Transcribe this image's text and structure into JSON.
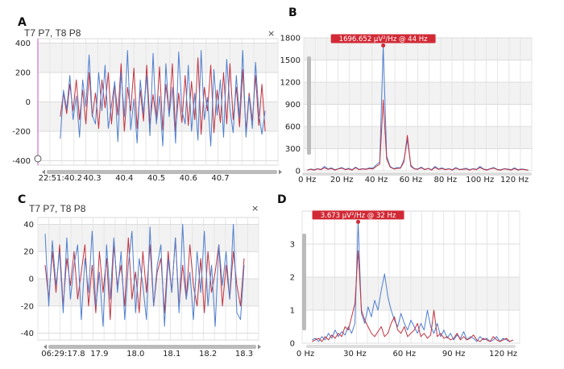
{
  "panels": {
    "a": {
      "letter": "A",
      "title": "T7 P7, T8 P8",
      "close": "×"
    },
    "b": {
      "letter": "B"
    },
    "c": {
      "letter": "C",
      "title": "T7 P7, T8 P8",
      "close": "×"
    },
    "d": {
      "letter": "D"
    }
  },
  "colors": {
    "series_red": "#c2323f",
    "series_blue": "#4f7fcf",
    "scrollbar": "#bbbbbb",
    "marker": "#d12a36",
    "cursor": "#d070d0"
  },
  "chart_data": [
    {
      "id": "A",
      "type": "line",
      "grid": true,
      "ylim": [
        -430,
        430
      ],
      "xlim": [
        40.13,
        40.88
      ],
      "yticks": [
        400,
        200,
        0,
        -200,
        -400
      ],
      "xticks": [
        {
          "v": 40.2,
          "label": "22:51:40.2"
        },
        {
          "v": 40.3,
          "label": "40.3"
        },
        {
          "v": 40.4,
          "label": "40.4"
        },
        {
          "v": 40.5,
          "label": "40.5"
        },
        {
          "v": 40.6,
          "label": "40.6"
        },
        {
          "v": 40.7,
          "label": "40.7"
        }
      ],
      "x": [
        40.2,
        40.21,
        40.22,
        40.23,
        40.24,
        40.25,
        40.26,
        40.27,
        40.28,
        40.29,
        40.3,
        40.31,
        40.32,
        40.33,
        40.34,
        40.35,
        40.36,
        40.37,
        40.38,
        40.39,
        40.4,
        40.41,
        40.42,
        40.43,
        40.44,
        40.45,
        40.46,
        40.47,
        40.48,
        40.49,
        40.5,
        40.51,
        40.52,
        40.53,
        40.54,
        40.55,
        40.56,
        40.57,
        40.58,
        40.59,
        40.6,
        40.61,
        40.62,
        40.63,
        40.64,
        40.65,
        40.66,
        40.67,
        40.68,
        40.69,
        40.7,
        40.71,
        40.72,
        40.73,
        40.74,
        40.75,
        40.76,
        40.77,
        40.78,
        40.79,
        40.8,
        40.81,
        40.82,
        40.83,
        40.84
      ],
      "series": [
        {
          "color": "#c2323f",
          "values": [
            -100,
            60,
            -80,
            120,
            -60,
            150,
            -120,
            80,
            -150,
            200,
            -100,
            60,
            -180,
            150,
            -40,
            200,
            -150,
            120,
            -90,
            260,
            -200,
            100,
            -60,
            230,
            -180,
            80,
            -130,
            250,
            -150,
            50,
            -120,
            240,
            -190,
            120,
            -80,
            260,
            -200,
            60,
            -140,
            180,
            -160,
            140,
            -120,
            300,
            -220,
            100,
            -60,
            250,
            -210,
            80,
            -140,
            200,
            -150,
            260,
            -120,
            100,
            -170,
            220,
            -200,
            60,
            -130,
            180,
            -160,
            120,
            -200
          ]
        },
        {
          "color": "#4f7fcf",
          "values": [
            -250,
            80,
            -50,
            180,
            -120,
            40,
            -240,
            150,
            -30,
            320,
            -90,
            -150,
            200,
            -60,
            250,
            -180,
            -20,
            140,
            -270,
            200,
            -100,
            350,
            -190,
            20,
            -280,
            150,
            -80,
            180,
            -230,
            330,
            -150,
            40,
            -300,
            260,
            -100,
            100,
            -280,
            340,
            -60,
            -150,
            250,
            -200,
            60,
            -260,
            350,
            -120,
            30,
            -300,
            220,
            -90,
            150,
            -240,
            290,
            -50,
            -210,
            180,
            -110,
            350,
            -240,
            40,
            -180,
            270,
            -80,
            -220,
            -60
          ]
        }
      ]
    },
    {
      "id": "B",
      "type": "line",
      "grid": true,
      "ylim": [
        0,
        1800
      ],
      "xlim": [
        -2,
        130
      ],
      "yticks": [
        0,
        300,
        600,
        900,
        1200,
        1500,
        1800
      ],
      "xticks": [
        {
          "v": 0,
          "label": "0 Hz"
        },
        {
          "v": 20,
          "label": "20 Hz"
        },
        {
          "v": 40,
          "label": "40 Hz"
        },
        {
          "v": 60,
          "label": "60 Hz"
        },
        {
          "v": 80,
          "label": "80 Hz"
        },
        {
          "v": 100,
          "label": "100 Hz"
        },
        {
          "v": 120,
          "label": "120 Hz"
        }
      ],
      "peak": {
        "label": "1696.652 µV²/Hz @ 44 Hz",
        "x": 44,
        "y": 1697
      },
      "x": [
        0,
        2,
        4,
        6,
        8,
        10,
        12,
        14,
        16,
        18,
        20,
        22,
        24,
        26,
        28,
        30,
        32,
        34,
        36,
        38,
        40,
        42,
        44,
        46,
        48,
        50,
        52,
        54,
        56,
        58,
        60,
        62,
        64,
        66,
        68,
        70,
        72,
        74,
        76,
        78,
        80,
        82,
        84,
        86,
        88,
        90,
        92,
        94,
        96,
        98,
        100,
        102,
        104,
        106,
        108,
        110,
        112,
        114,
        116,
        118,
        120,
        122,
        124,
        126,
        128
      ],
      "series": [
        {
          "color": "#4f7fcf",
          "values": [
            10,
            25,
            15,
            30,
            20,
            60,
            25,
            40,
            15,
            30,
            45,
            20,
            35,
            15,
            50,
            20,
            30,
            25,
            40,
            35,
            80,
            120,
            1697,
            200,
            60,
            30,
            45,
            40,
            150,
            420,
            80,
            30,
            25,
            50,
            20,
            35,
            15,
            60,
            25,
            40,
            20,
            30,
            15,
            45,
            20,
            25,
            35,
            15,
            30,
            20,
            60,
            25,
            15,
            30,
            45,
            20,
            15,
            30,
            25,
            15,
            40,
            15,
            25,
            20,
            10
          ]
        },
        {
          "color": "#c2323f",
          "values": [
            8,
            20,
            10,
            25,
            15,
            40,
            20,
            30,
            10,
            25,
            35,
            15,
            25,
            10,
            40,
            15,
            25,
            20,
            30,
            25,
            60,
            90,
            960,
            160,
            50,
            25,
            30,
            35,
            120,
            480,
            60,
            25,
            20,
            40,
            15,
            30,
            10,
            45,
            20,
            30,
            15,
            25,
            10,
            35,
            15,
            20,
            25,
            10,
            25,
            15,
            45,
            20,
            10,
            25,
            35,
            15,
            10,
            25,
            20,
            10,
            30,
            10,
            20,
            15,
            8
          ]
        }
      ]
    },
    {
      "id": "C",
      "type": "line",
      "grid": true,
      "ylim": [
        -45,
        45
      ],
      "xlim": [
        17.73,
        18.34
      ],
      "yticks": [
        40,
        20,
        0,
        -20,
        -40
      ],
      "xticks": [
        {
          "v": 17.8,
          "label": "06:29:17.8"
        },
        {
          "v": 17.9,
          "label": "17.9"
        },
        {
          "v": 18.0,
          "label": "18.0"
        },
        {
          "v": 18.1,
          "label": "18.1"
        },
        {
          "v": 18.2,
          "label": "18.2"
        },
        {
          "v": 18.3,
          "label": "18.3"
        }
      ],
      "x": [
        17.75,
        17.76,
        17.77,
        17.78,
        17.79,
        17.8,
        17.81,
        17.82,
        17.83,
        17.84,
        17.85,
        17.86,
        17.87,
        17.88,
        17.89,
        17.9,
        17.91,
        17.92,
        17.93,
        17.94,
        17.95,
        17.96,
        17.97,
        17.98,
        17.99,
        18.0,
        18.01,
        18.02,
        18.03,
        18.04,
        18.05,
        18.06,
        18.07,
        18.08,
        18.09,
        18.1,
        18.11,
        18.12,
        18.13,
        18.14,
        18.15,
        18.16,
        18.17,
        18.18,
        18.19,
        18.2,
        18.21,
        18.22,
        18.23,
        18.24,
        18.25,
        18.26,
        18.27,
        18.28,
        18.29,
        18.3
      ],
      "series": [
        {
          "color": "#c2323f",
          "values": [
            10,
            -15,
            20,
            -10,
            25,
            -20,
            15,
            -5,
            20,
            -15,
            5,
            25,
            -20,
            10,
            -25,
            20,
            -10,
            15,
            -30,
            25,
            -5,
            10,
            -20,
            30,
            -15,
            5,
            -25,
            20,
            -10,
            25,
            -20,
            5,
            15,
            -25,
            20,
            -10,
            30,
            -20,
            10,
            -15,
            25,
            -5,
            -20,
            15,
            -25,
            20,
            -10,
            5,
            25,
            -20,
            10,
            -15,
            20,
            -5,
            -20,
            15
          ]
        },
        {
          "color": "#4f7fcf",
          "values": [
            33,
            -20,
            28,
            -5,
            20,
            -25,
            30,
            -15,
            10,
            25,
            -30,
            15,
            -10,
            35,
            -20,
            5,
            -35,
            25,
            -15,
            30,
            -10,
            20,
            -30,
            10,
            35,
            -25,
            15,
            -5,
            -30,
            38,
            -20,
            10,
            25,
            -35,
            15,
            -10,
            30,
            -25,
            40,
            -15,
            5,
            -30,
            20,
            -10,
            35,
            -20,
            10,
            -35,
            25,
            -5,
            20,
            -15,
            40,
            -25,
            -30,
            10
          ]
        }
      ]
    },
    {
      "id": "D",
      "type": "line",
      "grid": true,
      "ylim": [
        0,
        4.0
      ],
      "xlim": [
        -2,
        130
      ],
      "yticks": [
        0,
        1,
        2,
        3
      ],
      "xticks": [
        {
          "v": 0,
          "label": "0 Hz"
        },
        {
          "v": 30,
          "label": "30 Hz"
        },
        {
          "v": 60,
          "label": "60 Hz"
        },
        {
          "v": 90,
          "label": "90 Hz"
        },
        {
          "v": 120,
          "label": "120 Hz"
        }
      ],
      "peak": {
        "label": "3.673 µV²/Hz @ 32 Hz",
        "x": 32,
        "y": 3.673
      },
      "x": [
        4,
        6,
        8,
        10,
        12,
        14,
        16,
        18,
        20,
        22,
        24,
        26,
        28,
        30,
        32,
        34,
        36,
        38,
        40,
        42,
        44,
        46,
        48,
        50,
        52,
        54,
        56,
        58,
        60,
        62,
        64,
        66,
        68,
        70,
        72,
        74,
        76,
        78,
        80,
        82,
        84,
        86,
        88,
        90,
        92,
        94,
        96,
        98,
        100,
        102,
        104,
        106,
        108,
        110,
        112,
        114,
        116,
        118,
        120,
        122,
        124,
        126
      ],
      "series": [
        {
          "color": "#4f7fcf",
          "values": [
            0.1,
            0.15,
            0.05,
            0.2,
            0.1,
            0.3,
            0.15,
            0.4,
            0.2,
            0.35,
            0.25,
            0.5,
            0.3,
            0.6,
            3.67,
            0.9,
            0.6,
            1.1,
            0.8,
            1.3,
            1.0,
            1.6,
            2.1,
            1.4,
            1.0,
            0.7,
            0.5,
            0.9,
            0.6,
            0.4,
            0.7,
            0.5,
            0.3,
            0.6,
            0.4,
            1.0,
            0.5,
            0.3,
            0.6,
            0.2,
            0.4,
            0.15,
            0.3,
            0.1,
            0.25,
            0.15,
            0.35,
            0.1,
            0.2,
            0.15,
            0.05,
            0.2,
            0.1,
            0.15,
            0.05,
            0.1,
            0.2,
            0.05,
            0.15,
            0.1,
            0.05,
            0.1
          ]
        },
        {
          "color": "#c2323f",
          "values": [
            0.05,
            0.1,
            0.15,
            0.05,
            0.2,
            0.1,
            0.25,
            0.15,
            0.3,
            0.2,
            0.5,
            0.4,
            0.8,
            1.2,
            2.8,
            1.0,
            0.7,
            0.5,
            0.3,
            0.2,
            0.35,
            0.5,
            0.2,
            0.3,
            0.6,
            0.8,
            0.4,
            0.3,
            0.5,
            0.2,
            0.3,
            0.4,
            0.6,
            0.2,
            0.3,
            0.15,
            0.25,
            1.0,
            0.2,
            0.3,
            0.15,
            0.2,
            0.1,
            0.15,
            0.3,
            0.1,
            0.2,
            0.1,
            0.15,
            0.25,
            0.1,
            0.05,
            0.15,
            0.1,
            0.05,
            0.2,
            0.1,
            0.05,
            0.1,
            0.15,
            0.05,
            0.1
          ]
        }
      ]
    }
  ]
}
